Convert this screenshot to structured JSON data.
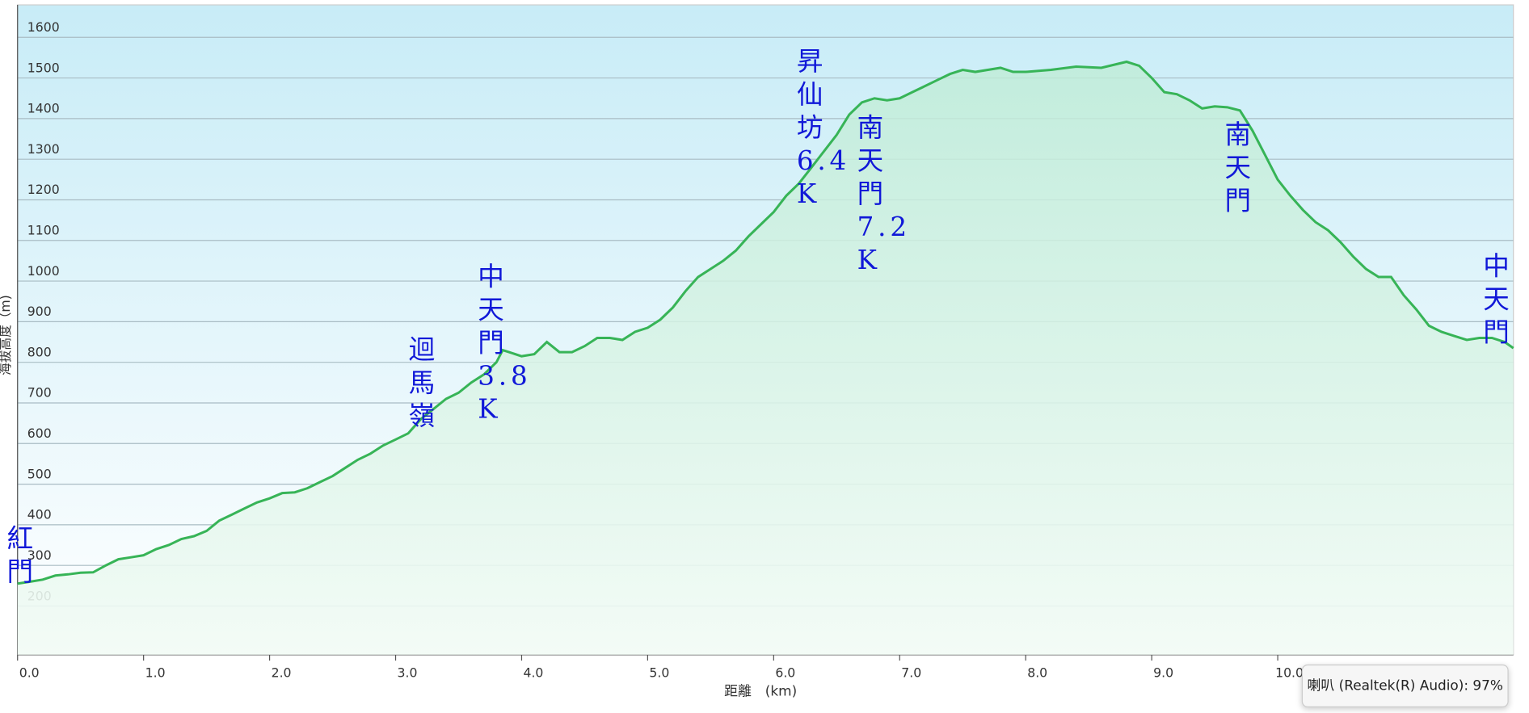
{
  "chart_data": {
    "type": "line",
    "y_label": "海拔高度（m)",
    "x_label": "距離　(km)",
    "x": [
      0,
      0.1,
      0.2,
      0.3,
      0.4,
      0.5,
      0.6,
      0.7,
      0.8,
      0.9,
      1.0,
      1.1,
      1.2,
      1.3,
      1.4,
      1.5,
      1.6,
      1.7,
      1.8,
      1.9,
      2.0,
      2.1,
      2.2,
      2.3,
      2.4,
      2.5,
      2.6,
      2.7,
      2.8,
      2.9,
      3.0,
      3.1,
      3.2,
      3.3,
      3.4,
      3.5,
      3.6,
      3.7,
      3.8,
      3.85,
      3.9,
      4.0,
      4.1,
      4.2,
      4.3,
      4.4,
      4.5,
      4.6,
      4.7,
      4.8,
      4.9,
      5.0,
      5.1,
      5.2,
      5.3,
      5.4,
      5.5,
      5.6,
      5.7,
      5.8,
      5.9,
      6.0,
      6.1,
      6.2,
      6.3,
      6.4,
      6.5,
      6.6,
      6.7,
      6.8,
      6.9,
      7.0,
      7.1,
      7.2,
      7.3,
      7.4,
      7.5,
      7.6,
      7.7,
      7.8,
      7.9,
      8.0,
      8.2,
      8.4,
      8.6,
      8.8,
      8.9,
      9.0,
      9.1,
      9.2,
      9.3,
      9.4,
      9.5,
      9.6,
      9.7,
      9.8,
      9.9,
      10.0,
      10.1,
      10.2,
      10.3,
      10.4,
      10.5,
      10.6,
      10.7,
      10.8,
      10.9,
      11.0,
      11.1,
      11.2,
      11.3,
      11.4,
      11.5,
      11.6,
      11.7,
      11.8,
      11.87
    ],
    "values": [
      255,
      260,
      265,
      275,
      278,
      282,
      283,
      300,
      315,
      320,
      325,
      340,
      350,
      365,
      372,
      385,
      410,
      425,
      440,
      455,
      465,
      478,
      480,
      490,
      505,
      520,
      540,
      560,
      575,
      595,
      610,
      625,
      660,
      685,
      710,
      725,
      750,
      770,
      800,
      830,
      825,
      815,
      820,
      850,
      825,
      825,
      840,
      860,
      860,
      855,
      875,
      885,
      905,
      935,
      975,
      1010,
      1030,
      1050,
      1075,
      1110,
      1140,
      1170,
      1210,
      1240,
      1280,
      1320,
      1360,
      1410,
      1440,
      1450,
      1445,
      1450,
      1465,
      1480,
      1495,
      1510,
      1520,
      1515,
      1520,
      1525,
      1515,
      1515,
      1520,
      1528,
      1525,
      1540,
      1530,
      1500,
      1465,
      1460,
      1445,
      1425,
      1430,
      1428,
      1420,
      1370,
      1310,
      1250,
      1210,
      1175,
      1145,
      1125,
      1095,
      1060,
      1030,
      1010,
      1010,
      965,
      930,
      890,
      875,
      865,
      855,
      860,
      860,
      850,
      835
    ],
    "color": "#37b457",
    "xlim": [
      0,
      11.87
    ],
    "ylim": [
      80,
      1680
    ],
    "xticks": [
      {
        "value": 0,
        "label": "0.0"
      },
      {
        "value": 1,
        "label": "1.0"
      },
      {
        "value": 2,
        "label": "2.0"
      },
      {
        "value": 3,
        "label": "3.0"
      },
      {
        "value": 4,
        "label": "4.0"
      },
      {
        "value": 5,
        "label": "5.0"
      },
      {
        "value": 6,
        "label": "6.0"
      },
      {
        "value": 7,
        "label": "7.0"
      },
      {
        "value": 8,
        "label": "8.0"
      },
      {
        "value": 9,
        "label": "9.0"
      },
      {
        "value": 10,
        "label": "10.0"
      }
    ],
    "yticks": [
      200,
      300,
      400,
      500,
      600,
      700,
      800,
      900,
      1000,
      1100,
      1200,
      1300,
      1400,
      1500,
      1600
    ],
    "grid": true,
    "annotations": [
      "紅門",
      "迴馬嶺",
      "中天門3.8K",
      "昇仙坊6.4K",
      "南天門7.2K",
      "南天門",
      "中天門"
    ]
  },
  "popup": "喇叭 (Realtek(R) Audio): 97%"
}
